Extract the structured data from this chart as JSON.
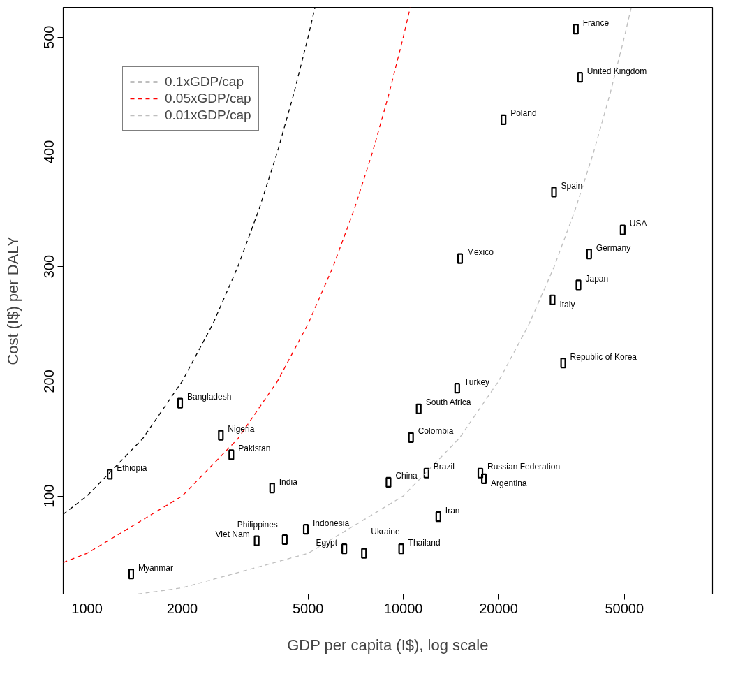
{
  "chart_data": {
    "type": "scatter",
    "xlabel": "GDP per capita (I$), log scale",
    "ylabel": "Cost (I$) per DALY",
    "log": "x",
    "xlim": [
      841,
      95000
    ],
    "ylim": [
      14.5,
      526
    ],
    "xticks": [
      1000,
      2000,
      5000,
      10000,
      20000,
      50000
    ],
    "yticks": [
      100,
      200,
      300,
      400,
      500
    ],
    "grid": false,
    "legend": "top left",
    "marker": "square",
    "series": [
      {
        "color": "#000000",
        "x": [
          35130,
          36220,
          20750,
          29970,
          49400,
          38700,
          15120,
          35800,
          29650,
          32030,
          14810,
          11190,
          10580,
          11840,
          8980,
          17530,
          17990,
          12910,
          9850,
          7510,
          6510,
          4920,
          4220,
          3440,
          3850,
          1380,
          1180,
          1970,
          2650,
          2860
        ],
        "values": [
          507,
          465,
          428,
          365,
          332,
          311,
          307,
          284,
          271,
          216,
          194,
          176,
          151,
          120,
          112,
          120,
          115,
          82,
          54,
          50,
          54,
          71,
          62,
          61,
          107,
          32,
          119,
          181,
          153,
          136
        ]
      },
      {
        "type": "line",
        "name": "0.1xGDP/cap",
        "color": "#000000",
        "line_style": "dashed",
        "marker": "none",
        "x": [
          841,
          1000,
          1500,
          2000,
          2500,
          3000,
          3500,
          4000,
          4500,
          5000,
          5260
        ],
        "values": [
          84.1,
          100,
          150,
          200,
          250,
          300,
          350,
          400,
          450,
          500,
          526
        ]
      },
      {
        "type": "line",
        "name": "0.05xGDP/cap",
        "color": "#ff0000",
        "line_style": "dashed",
        "marker": "none",
        "x": [
          841,
          1000,
          2000,
          3000,
          4000,
          5000,
          6000,
          7000,
          8000,
          9000,
          10000,
          10520
        ],
        "values": [
          42,
          50,
          100,
          150,
          200,
          250,
          300,
          350,
          400,
          450,
          500,
          526
        ]
      },
      {
        "type": "line",
        "name": "0.01xGDP/cap",
        "color": "#bebebe",
        "line_style": "dashed",
        "marker": "none",
        "x": [
          1450,
          2000,
          5000,
          10000,
          15000,
          20000,
          25000,
          30000,
          35000,
          40000,
          45000,
          50000,
          52600
        ],
        "values": [
          14.5,
          20,
          50,
          100,
          150,
          200,
          250,
          300,
          350,
          400,
          450,
          500,
          526
        ]
      }
    ],
    "annotations": [
      {
        "text": "France",
        "x": 35130,
        "y": 507
      },
      {
        "text": "United Kingdom",
        "x": 36220,
        "y": 465
      },
      {
        "text": "Poland",
        "x": 20750,
        "y": 428
      },
      {
        "text": "Spain",
        "x": 29970,
        "y": 365
      },
      {
        "text": "USA",
        "x": 49400,
        "y": 332
      },
      {
        "text": "Germany",
        "x": 38700,
        "y": 311
      },
      {
        "text": "Mexico",
        "x": 15120,
        "y": 307
      },
      {
        "text": "Japan",
        "x": 35800,
        "y": 284
      },
      {
        "text": "Italy",
        "x": 29650,
        "y": 271
      },
      {
        "text": "Republic of Korea",
        "x": 32030,
        "y": 216
      },
      {
        "text": "Turkey",
        "x": 14810,
        "y": 194
      },
      {
        "text": "South Africa",
        "x": 11190,
        "y": 176
      },
      {
        "text": "Colombia",
        "x": 10580,
        "y": 151
      },
      {
        "text": "Brazil",
        "x": 11840,
        "y": 120
      },
      {
        "text": "China",
        "x": 8980,
        "y": 112
      },
      {
        "text": "Russian Federation",
        "x": 17530,
        "y": 120
      },
      {
        "text": "Argentina",
        "x": 17990,
        "y": 115
      },
      {
        "text": "Iran",
        "x": 12910,
        "y": 82
      },
      {
        "text": "Thailand",
        "x": 9850,
        "y": 54
      },
      {
        "text": "Ukraine",
        "x": 7510,
        "y": 50
      },
      {
        "text": "Egypt",
        "x": 6510,
        "y": 54
      },
      {
        "text": "Indonesia",
        "x": 4920,
        "y": 71
      },
      {
        "text": "Philippines",
        "x": 4220,
        "y": 62
      },
      {
        "text": "Viet Nam",
        "x": 3440,
        "y": 61
      },
      {
        "text": "India",
        "x": 3850,
        "y": 107
      },
      {
        "text": "Myanmar",
        "x": 1380,
        "y": 32
      },
      {
        "text": "Ethiopia",
        "x": 1180,
        "y": 119
      },
      {
        "text": "Bangladesh",
        "x": 1970,
        "y": 181
      },
      {
        "text": "Nigeria",
        "x": 2650,
        "y": 153
      },
      {
        "text": "Pakistan",
        "x": 2860,
        "y": 136
      }
    ]
  }
}
